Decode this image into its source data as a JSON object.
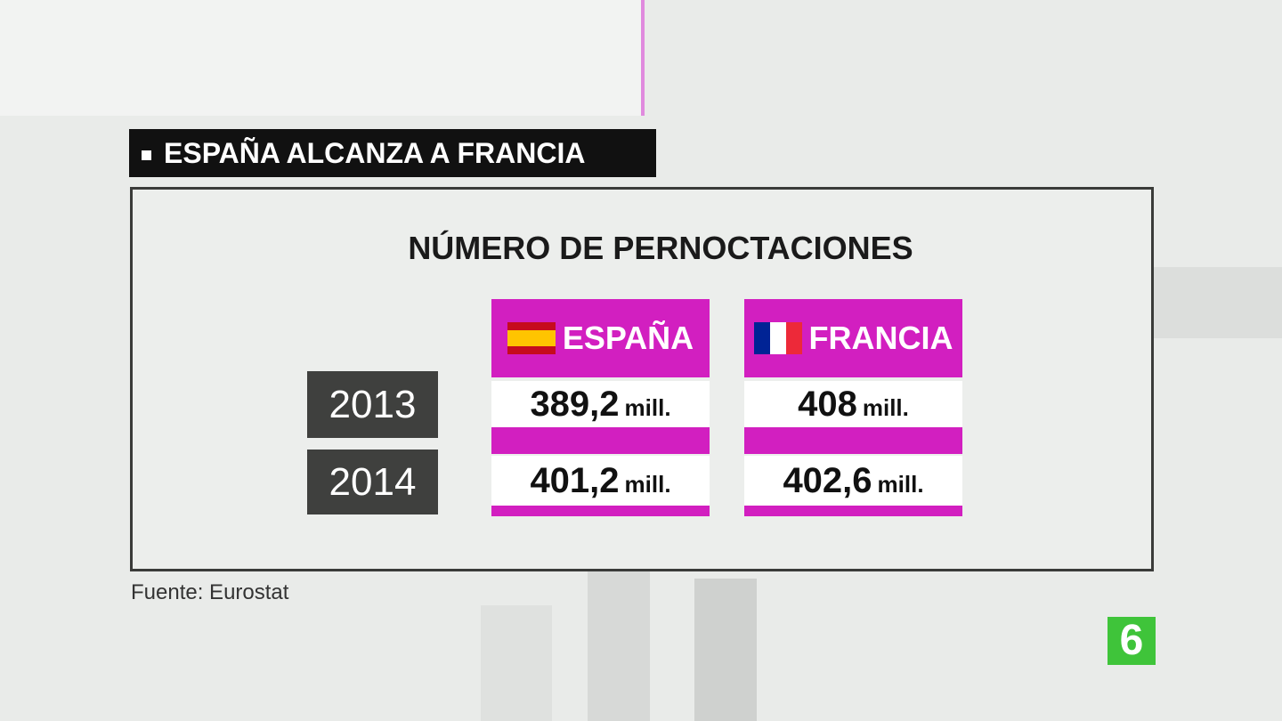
{
  "header": {
    "title": "ESPAÑA ALCANZA A FRANCIA"
  },
  "table": {
    "title": "NÚMERO DE PERNOCTACIONES",
    "columns": [
      "ESPAÑA",
      "FRANCIA"
    ],
    "rows": [
      {
        "year": "2013",
        "cells": [
          {
            "value": "389,2",
            "unit": "mill."
          },
          {
            "value": "408",
            "unit": "mill."
          }
        ]
      },
      {
        "year": "2014",
        "cells": [
          {
            "value": "401,2",
            "unit": "mill."
          },
          {
            "value": "402,6",
            "unit": "mill."
          }
        ]
      }
    ]
  },
  "source": "Fuente: Eurostat",
  "logo": "6"
}
